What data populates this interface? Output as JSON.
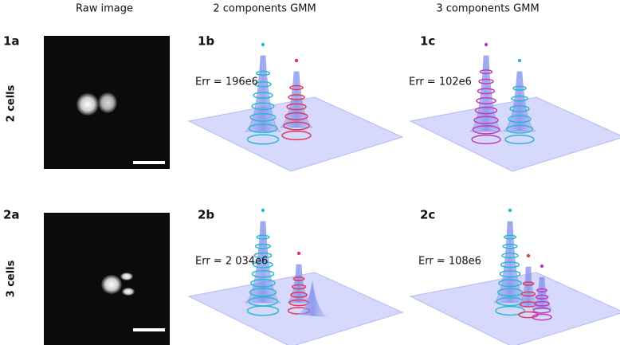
{
  "column_headers": [
    "Raw image",
    "2 components GMM",
    "3 components GMM"
  ],
  "rows": [
    {
      "row_label": "2 cells",
      "panels": [
        {
          "tag": "1a"
        },
        {
          "tag": "1b",
          "error": "Err = 196e6"
        },
        {
          "tag": "1c",
          "error": "Err = 102e6"
        }
      ]
    },
    {
      "row_label": "3 cells",
      "panels": [
        {
          "tag": "2a"
        },
        {
          "tag": "2b",
          "error": "Err = 2 034e6"
        },
        {
          "tag": "2c",
          "error": "Err = 108e6"
        }
      ]
    }
  ]
}
